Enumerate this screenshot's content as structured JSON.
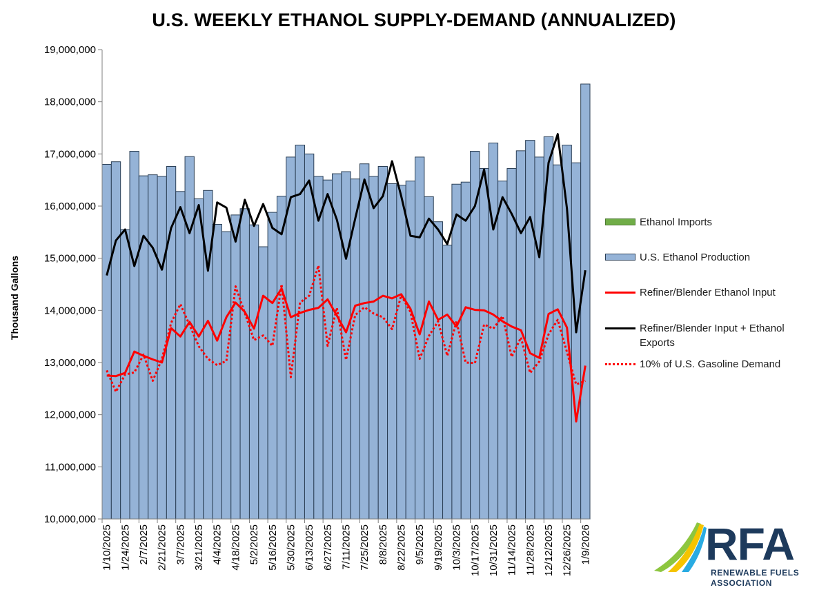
{
  "chart_data": {
    "type": "bar+line",
    "title": "U.S. WEEKLY ETHANOL SUPPLY-DEMAND (ANNUALIZED)",
    "ylabel": "Thousand Gallons",
    "xlabel": "",
    "ylim": [
      10000000,
      19000000
    ],
    "yticks": [
      10000000,
      11000000,
      12000000,
      13000000,
      14000000,
      15000000,
      16000000,
      17000000,
      18000000,
      19000000
    ],
    "ytick_labels": [
      "10,000,000",
      "11,000,000",
      "12,000,000",
      "13,000,000",
      "14,000,000",
      "15,000,000",
      "16,000,000",
      "17,000,000",
      "18,000,000",
      "19,000,000"
    ],
    "grid": false,
    "x": [
      "1/10/2025",
      "1/17/2025",
      "1/24/2025",
      "1/31/2025",
      "2/7/2025",
      "2/14/2025",
      "2/21/2025",
      "2/28/2025",
      "3/7/2025",
      "3/14/2025",
      "3/21/2025",
      "3/28/2025",
      "4/4/2025",
      "4/11/2025",
      "4/18/2025",
      "4/25/2025",
      "5/2/2025",
      "5/9/2025",
      "5/16/2025",
      "5/23/2025",
      "5/30/2025",
      "6/6/2025",
      "6/13/2025",
      "6/20/2025",
      "6/27/2025",
      "7/4/2025",
      "7/11/2025",
      "7/18/2025",
      "7/25/2025",
      "8/1/2025",
      "8/8/2025",
      "8/15/2025",
      "8/22/2025",
      "8/29/2025",
      "9/5/2025",
      "9/12/2025",
      "9/19/2025",
      "9/26/2025",
      "10/3/2025",
      "10/10/2025",
      "10/17/2025",
      "10/24/2025",
      "10/31/2025",
      "11/7/2025",
      "11/14/2025",
      "11/21/2025",
      "11/28/2025",
      "12/5/2025",
      "12/12/2025",
      "12/19/2025",
      "12/26/2025",
      "1/2/2026",
      "1/9/2026"
    ],
    "tick_labels": [
      "1/10/2025",
      "1/24/2025",
      "2/7/2025",
      "2/21/2025",
      "3/7/2025",
      "3/21/2025",
      "4/4/2025",
      "4/18/2025",
      "5/2/2025",
      "5/16/2025",
      "5/30/2025",
      "6/13/2025",
      "6/27/2025",
      "7/11/2025",
      "7/25/2025",
      "8/8/2025",
      "8/22/2025",
      "9/5/2025",
      "9/19/2025",
      "10/3/2025",
      "10/17/2025",
      "10/31/2025",
      "11/14/2025",
      "11/28/2025",
      "12/12/2025",
      "12/26/2025",
      "1/9/2026"
    ],
    "series": [
      {
        "name": "Ethanol Imports",
        "kind": "bar-stacked",
        "color": "#70ad47",
        "values": [
          0,
          0,
          0,
          0,
          0,
          0,
          0,
          0,
          0,
          0,
          0,
          0,
          0,
          0,
          0,
          0,
          0,
          0,
          0,
          0,
          0,
          0,
          0,
          0,
          0,
          0,
          0,
          0,
          0,
          0,
          0,
          0,
          0,
          0,
          0,
          0,
          0,
          0,
          0,
          0,
          0,
          0,
          0,
          0,
          0,
          0,
          0,
          0,
          0,
          0,
          0,
          0,
          0
        ]
      },
      {
        "name": "U.S. Ethanol Production",
        "kind": "bar",
        "color": "#95b3d7",
        "values": [
          16800000,
          16850000,
          15550000,
          17050000,
          16580000,
          16600000,
          16570000,
          16760000,
          16280000,
          16950000,
          16140000,
          16300000,
          15650000,
          15510000,
          15830000,
          15950000,
          15640000,
          15220000,
          15880000,
          16190000,
          16940000,
          17170000,
          17000000,
          16570000,
          16500000,
          16620000,
          16660000,
          16520000,
          16810000,
          16570000,
          16760000,
          16430000,
          16400000,
          16480000,
          16940000,
          16180000,
          15700000,
          15250000,
          16420000,
          16460000,
          17050000,
          16720000,
          17210000,
          16480000,
          16720000,
          17060000,
          17260000,
          16940000,
          17330000,
          16790000,
          17170000,
          16830000,
          18340000
        ]
      },
      {
        "name": "Refiner/Blender Ethanol Input",
        "kind": "line",
        "color": "#ff0000",
        "values": [
          12750000,
          12740000,
          12800000,
          13210000,
          13130000,
          13060000,
          13000000,
          13660000,
          13500000,
          13780000,
          13500000,
          13800000,
          13420000,
          13870000,
          14150000,
          13970000,
          13650000,
          14280000,
          14140000,
          14420000,
          13870000,
          13950000,
          14010000,
          14050000,
          14210000,
          13900000,
          13580000,
          14090000,
          14140000,
          14170000,
          14280000,
          14230000,
          14310000,
          14030000,
          13540000,
          14170000,
          13820000,
          13920000,
          13690000,
          14060000,
          14010000,
          14000000,
          13920000,
          13790000,
          13690000,
          13620000,
          13180000,
          13090000,
          13930000,
          14020000,
          13670000,
          11870000,
          12940000
        ]
      },
      {
        "name": "Refiner/Blender Input + Ethanol Exports",
        "kind": "line",
        "color": "#000000",
        "values": [
          14670000,
          15340000,
          15550000,
          14850000,
          15430000,
          15200000,
          14780000,
          15580000,
          15980000,
          15480000,
          16020000,
          14760000,
          16070000,
          15970000,
          15320000,
          16120000,
          15620000,
          16040000,
          15580000,
          15460000,
          16170000,
          16230000,
          16490000,
          15720000,
          16230000,
          15740000,
          14990000,
          15760000,
          16510000,
          15960000,
          16190000,
          16860000,
          16190000,
          15430000,
          15400000,
          15760000,
          15550000,
          15270000,
          15840000,
          15720000,
          16000000,
          16700000,
          15550000,
          16170000,
          15850000,
          15480000,
          15790000,
          15020000,
          16830000,
          17380000,
          15950000,
          13580000,
          14770000
        ]
      },
      {
        "name": "10% of U.S. Gasoline Demand",
        "kind": "line-dotted",
        "color": "#ff0000",
        "values": [
          12850000,
          12440000,
          12770000,
          12810000,
          13150000,
          12650000,
          13070000,
          13760000,
          14120000,
          13720000,
          13310000,
          13070000,
          12950000,
          13030000,
          14460000,
          13950000,
          13430000,
          13520000,
          13320000,
          14500000,
          12720000,
          14150000,
          14280000,
          14860000,
          13320000,
          14050000,
          13050000,
          13910000,
          14060000,
          13940000,
          13870000,
          13640000,
          14290000,
          13970000,
          13070000,
          13510000,
          13790000,
          13130000,
          13790000,
          13000000,
          12990000,
          13730000,
          13650000,
          13890000,
          13110000,
          13480000,
          12800000,
          13020000,
          13540000,
          13820000,
          13200000,
          12580000,
          12650000
        ]
      }
    ],
    "legend": [
      "Ethanol Imports",
      "U.S. Ethanol Production",
      "Refiner/Blender Ethanol Input",
      "Refiner/Blender Input + Ethanol Exports",
      "10% of U.S. Gasoline Demand"
    ],
    "legend_position": "right"
  },
  "legend_labels": {
    "imports": "Ethanol Imports",
    "production": "U.S. Ethanol Production",
    "input": "Refiner/Blender Ethanol Input",
    "input_exports": "Refiner/Blender Input + Ethanol Exports",
    "gasoline": "10% of U.S. Gasoline Demand"
  },
  "logo": {
    "text": "RFA",
    "line1": "RENEWABLE FUELS",
    "line2": "ASSOCIATION",
    "colors": [
      "#8dc63f",
      "#f5c400",
      "#29abe2",
      "#1d3a5c"
    ]
  }
}
